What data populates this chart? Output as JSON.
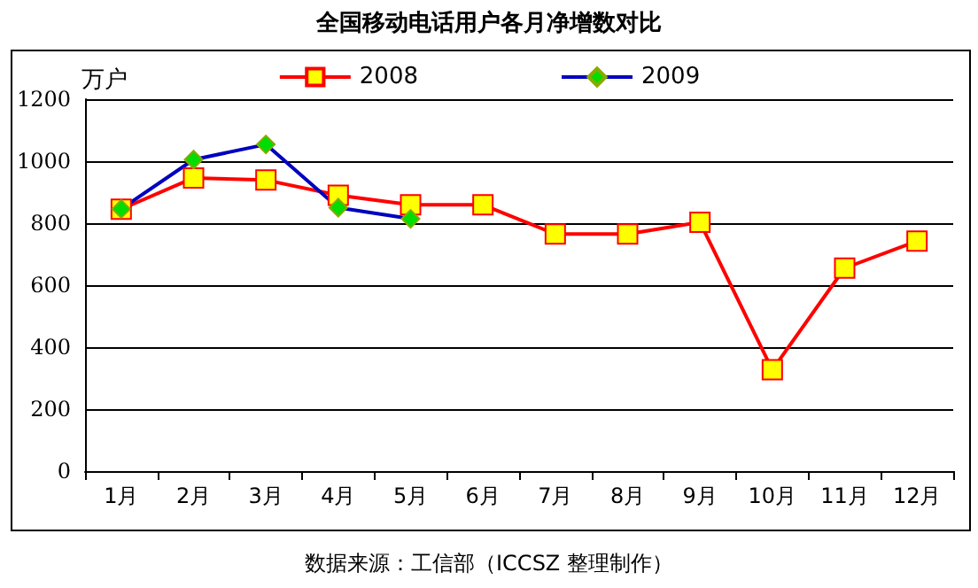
{
  "chart_data": {
    "type": "line",
    "title": "全国移动电话用户各月净增数对比",
    "ylabel": "万户",
    "annotations": [
      "数据来源：工信部（ICCSZ 整理制作）"
    ],
    "categories": [
      "1月",
      "2月",
      "3月",
      "4月",
      "5月",
      "6月",
      "7月",
      "8月",
      "9月",
      "10月",
      "11月",
      "12月"
    ],
    "series": [
      {
        "name": "2008",
        "color": "#ff0000",
        "marker": "square",
        "values": [
          845,
          946,
          939,
          890,
          859,
          859,
          765,
          765,
          803,
          327,
          655,
          742
        ]
      },
      {
        "name": "2009",
        "color": "#0000c0",
        "marker": "diamond",
        "values": [
          846,
          1005,
          1054,
          850,
          814,
          null,
          null,
          null,
          null,
          null,
          null,
          null
        ]
      }
    ],
    "ylim": [
      0,
      1200
    ],
    "yticks": [
      0,
      200,
      400,
      600,
      800,
      1000,
      1200
    ],
    "grid": "y",
    "legend": "top"
  }
}
